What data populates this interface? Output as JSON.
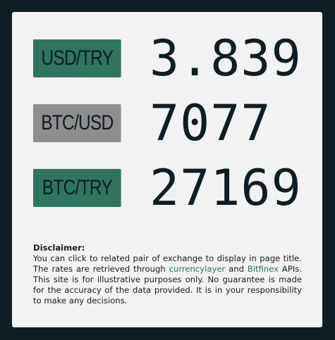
{
  "rates": [
    {
      "pair": "USD/TRY",
      "value": "3.839",
      "color": "#2e7560"
    },
    {
      "pair": "BTC/USD",
      "value": "7077",
      "color": "#8e8e8e"
    },
    {
      "pair": "BTC/TRY",
      "value": "27169",
      "color": "#2e7560"
    }
  ],
  "disclaimer": {
    "title": "Disclaimer:",
    "text1": "You can click to related pair of exchange to display in page title. The rates are retrieved through ",
    "link1": "currencylayer",
    "text2": " and ",
    "link2": "Bitfinex",
    "text3": " APIs. This site is for illustrative purposes only. No guarantee is made for the accuracy of the data provided. It is in your responsibility to make any decisions."
  },
  "colors": {
    "background": "#0e1e24",
    "card": "#f2f2f2",
    "accent": "#2e7560",
    "muted": "#8e8e8e"
  }
}
